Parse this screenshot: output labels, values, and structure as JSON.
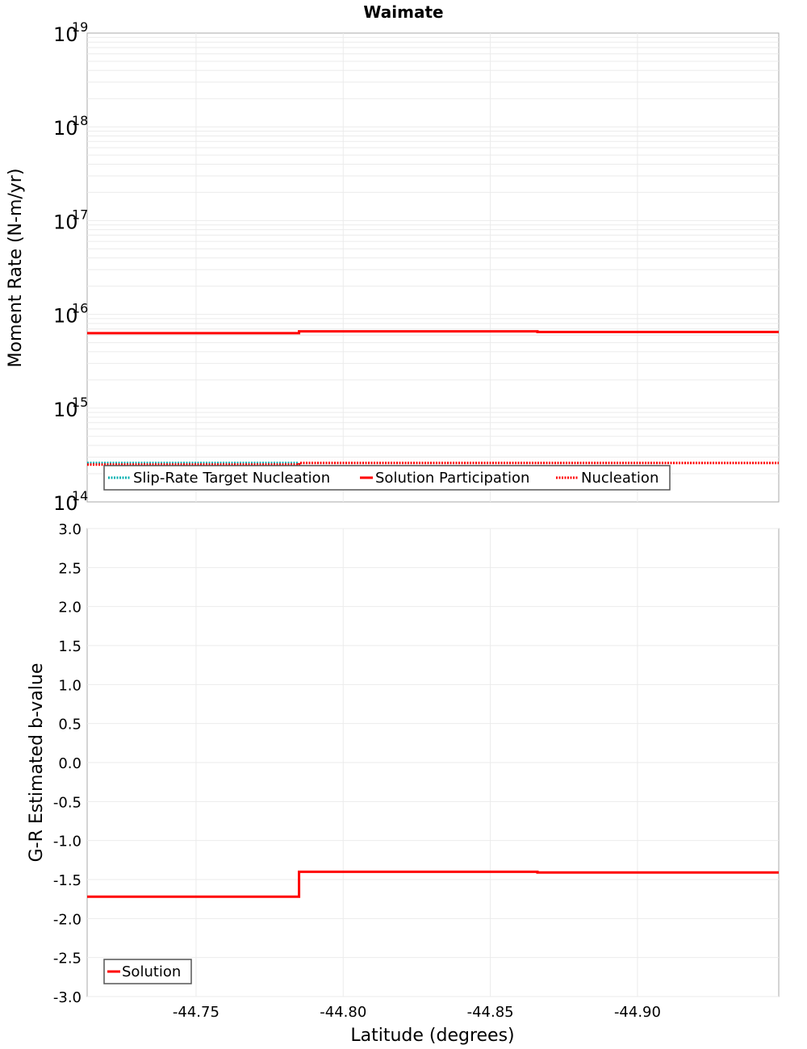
{
  "chart_data": [
    {
      "type": "line",
      "title": "Waimate",
      "xlabel": "Latitude (degrees)",
      "ylabel": "Moment Rate (N-m/yr)",
      "yscale": "log",
      "ylim": [
        100000000000000.0,
        1e+19
      ],
      "xlim": [
        -44.713,
        -44.948
      ],
      "x_ticks": [
        "-44.75",
        "-44.80",
        "-44.85",
        "-44.90"
      ],
      "y_ticks": [
        "10^14",
        "10^15",
        "10^16",
        "10^17",
        "10^18",
        "10^19"
      ],
      "grid": true,
      "legend_position": "bottom-left inside",
      "series": [
        {
          "name": "Slip-Rate Target Nucleation",
          "color": "#00b0b0",
          "style": "dotted",
          "segments": [
            {
              "x0": -44.713,
              "x1": -44.785,
              "y": 260000000000000.0
            }
          ]
        },
        {
          "name": "Solution Participation",
          "color": "#ff0000",
          "style": "solid",
          "segments": [
            {
              "x0": -44.713,
              "x1": -44.785,
              "y": 6300000000000000.0
            },
            {
              "x0": -44.785,
              "x1": -44.866,
              "y": 6600000000000000.0
            },
            {
              "x0": -44.866,
              "x1": -44.948,
              "y": 6500000000000000.0
            }
          ]
        },
        {
          "name": "Nucleation",
          "color": "#ff0000",
          "style": "dotted",
          "segments": [
            {
              "x0": -44.713,
              "x1": -44.785,
              "y": 250000000000000.0
            },
            {
              "x0": -44.785,
              "x1": -44.866,
              "y": 260000000000000.0
            },
            {
              "x0": -44.866,
              "x1": -44.948,
              "y": 260000000000000.0
            }
          ]
        }
      ]
    },
    {
      "type": "line",
      "title": "",
      "xlabel": "Latitude (degrees)",
      "ylabel": "G-R Estimated b-value",
      "ylim": [
        -3.0,
        3.0
      ],
      "xlim": [
        -44.713,
        -44.948
      ],
      "x_ticks": [
        "-44.75",
        "-44.80",
        "-44.85",
        "-44.90"
      ],
      "y_ticks": [
        "3.0",
        "2.5",
        "2.0",
        "1.5",
        "1.0",
        "0.5",
        "0.0",
        "-0.5",
        "-1.0",
        "-1.5",
        "-2.0",
        "-2.5",
        "-3.0"
      ],
      "grid": true,
      "legend_position": "bottom-left inside",
      "series": [
        {
          "name": "Solution",
          "color": "#ff0000",
          "style": "solid",
          "segments": [
            {
              "x0": -44.713,
              "x1": -44.785,
              "y": -1.72
            },
            {
              "x0": -44.785,
              "x1": -44.866,
              "y": -1.4
            },
            {
              "x0": -44.866,
              "x1": -44.948,
              "y": -1.41
            }
          ]
        }
      ]
    }
  ],
  "labels": {
    "title": "Waimate",
    "top_ylabel": "Moment Rate (N-m/yr)",
    "bottom_ylabel": "G-R Estimated b-value",
    "xlabel": "Latitude (degrees)",
    "top_y_base": "10",
    "top_y_exps": [
      "19",
      "18",
      "17",
      "16",
      "15",
      "14"
    ],
    "bottom_y_ticks": [
      "3.0",
      "2.5",
      "2.0",
      "1.5",
      "1.0",
      "0.5",
      "0.0",
      "-0.5",
      "-1.0",
      "-1.5",
      "-2.0",
      "-2.5",
      "-3.0"
    ],
    "x_ticks": [
      "-44.75",
      "-44.80",
      "-44.85",
      "-44.90"
    ],
    "legend_top": [
      "Slip-Rate Target Nucleation",
      "Solution Participation",
      "Nucleation"
    ],
    "legend_bottom": [
      "Solution"
    ]
  },
  "colors": {
    "red": "#ff0000",
    "cyan": "#00b0b0",
    "grid": "#ebebeb",
    "frame": "#aaaaaa"
  }
}
